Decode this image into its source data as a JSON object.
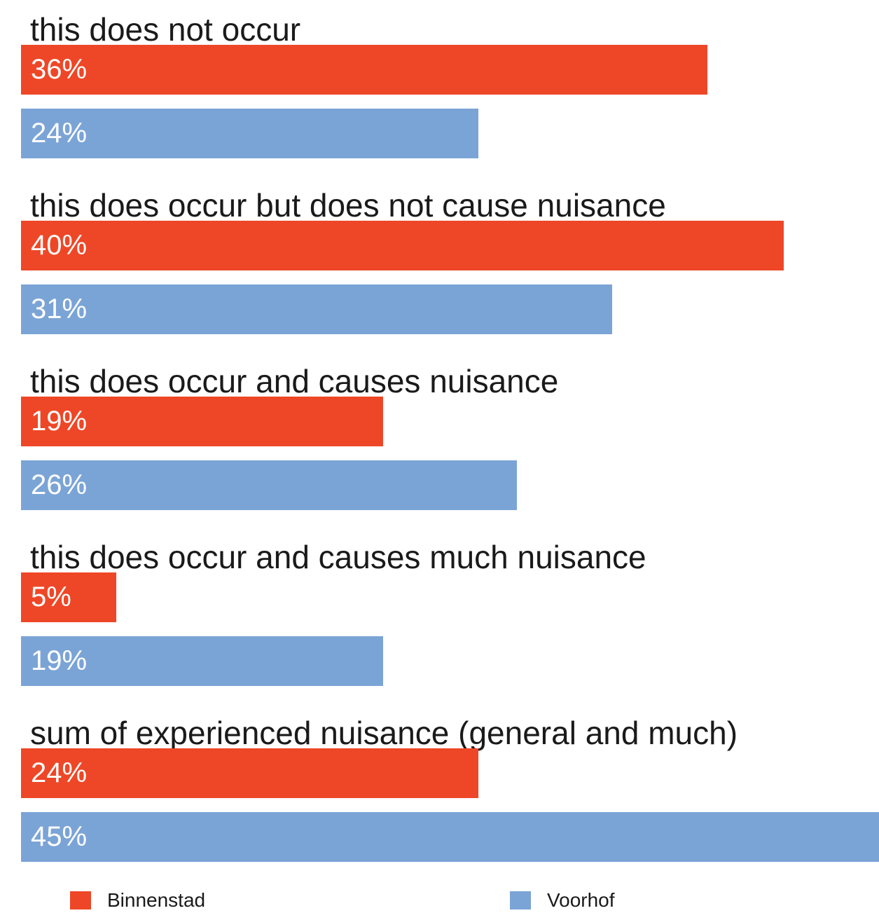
{
  "chart_data": {
    "type": "bar",
    "orientation": "horizontal",
    "categories": [
      "this does not occur",
      "this does occur but does not cause nuisance",
      "this does occur and causes nuisance",
      "this does occur and causes much nuisance",
      "sum of experienced nuisance (general and much)"
    ],
    "series": [
      {
        "name": "Binnenstad",
        "color": "#ee4727",
        "values": [
          36,
          40,
          19,
          5,
          24
        ],
        "labels": [
          "36%",
          "40%",
          "19%",
          "5%",
          "24%"
        ]
      },
      {
        "name": "Voorhof",
        "color": "#7ba4d6",
        "values": [
          24,
          31,
          26,
          19,
          45
        ],
        "labels": [
          "24%",
          "31%",
          "26%",
          "19%",
          "45%"
        ]
      }
    ],
    "unit": "%",
    "xlim": [
      0,
      45
    ],
    "grid": false,
    "legend_position": "bottom"
  }
}
